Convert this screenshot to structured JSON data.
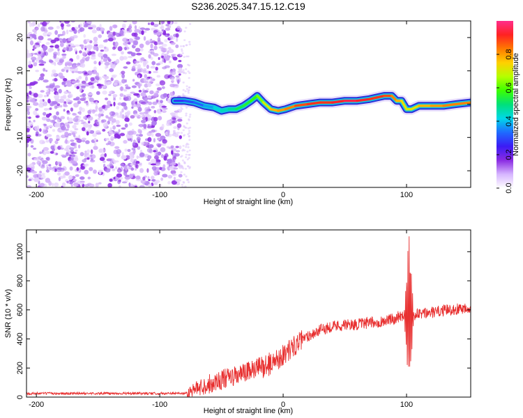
{
  "title": "S236.2025.347.15.12.C19",
  "chart_data": [
    {
      "type": "heatmap",
      "name": "spectrogram",
      "xlabel": "Height of straight line (km)",
      "ylabel": "Frequency (Hz)",
      "xlim": [
        -208,
        152
      ],
      "ylim": [
        -25,
        25
      ],
      "x_ticks": [
        -200,
        -100,
        0,
        100
      ],
      "x_tick_labels": [
        "-200",
        "-100",
        "0",
        "100"
      ],
      "y_ticks": [
        20,
        10,
        0,
        -10,
        -20
      ],
      "y_tick_labels": [
        "20",
        "10",
        "0",
        "-10",
        "-20"
      ],
      "noise_region_x": [
        -208,
        -83
      ],
      "ridge": {
        "x": [
          -88,
          -80,
          -72,
          -64,
          -56,
          -50,
          -44,
          -38,
          -32,
          -26,
          -21,
          -16,
          -10,
          -4,
          2,
          10,
          20,
          30,
          40,
          50,
          60,
          70,
          76,
          82,
          88,
          92,
          96,
          100,
          104,
          110,
          120,
          130,
          140,
          152
        ],
        "freq": [
          1,
          1,
          0.5,
          -0.5,
          -1,
          -2,
          -1.5,
          -1.5,
          -0.5,
          1,
          2.5,
          0.5,
          -1.5,
          -2,
          -1.5,
          -0.5,
          0,
          0.5,
          0.5,
          1,
          1,
          1.5,
          2,
          2.5,
          2.5,
          1,
          1,
          -1.5,
          -1.5,
          -0.5,
          -0.5,
          -0.5,
          0,
          0.5
        ],
        "amplitude": [
          0.25,
          0.3,
          0.3,
          0.35,
          0.4,
          0.45,
          0.45,
          0.5,
          0.55,
          0.55,
          0.6,
          0.65,
          0.75,
          0.8,
          0.8,
          0.85,
          0.9,
          0.9,
          0.9,
          0.95,
          0.95,
          0.9,
          0.9,
          0.9,
          0.85,
          0.8,
          0.75,
          0.7,
          0.7,
          0.75,
          0.8,
          0.8,
          0.85,
          0.8
        ]
      }
    },
    {
      "type": "line",
      "name": "snr",
      "xlabel": "Height of straight line (km)",
      "ylabel": "SNR (10 * v/v)",
      "xlim": [
        -208,
        152
      ],
      "ylim": [
        0,
        1150
      ],
      "x_ticks": [
        -200,
        -100,
        0,
        100
      ],
      "x_tick_labels": [
        "-200",
        "-100",
        "0",
        "100"
      ],
      "y_ticks": [
        0,
        200,
        400,
        600,
        800,
        1000
      ],
      "y_tick_labels": [
        "0",
        "200",
        "400",
        "600",
        "800",
        "1000"
      ],
      "color": "#e83030",
      "trend": {
        "x": [
          -208,
          -80,
          -70,
          -60,
          -50,
          -40,
          -30,
          -20,
          -10,
          0,
          10,
          20,
          30,
          40,
          60,
          80,
          90,
          95,
          105,
          110,
          120,
          130,
          140,
          152
        ],
        "y": [
          25,
          25,
          60,
          90,
          120,
          140,
          170,
          200,
          230,
          290,
          360,
          420,
          460,
          490,
          500,
          520,
          540,
          560,
          560,
          570,
          580,
          595,
          605,
          620
        ]
      },
      "spike": {
        "x": [
          98,
          106
        ],
        "max": 1150,
        "min": 210
      }
    }
  ],
  "colorbar": {
    "label": "Normalized spectral amplitude",
    "range": [
      0,
      1
    ],
    "ticks": [
      0.0,
      0.2,
      0.4,
      0.6,
      0.8
    ],
    "tick_labels": [
      "0.0",
      "0.2",
      "0.4",
      "0.6",
      "0.8"
    ],
    "colors": [
      "#ffffff",
      "#d6b5ff",
      "#8a2be2",
      "#3b1cf5",
      "#1e6bff",
      "#00d8e8",
      "#00e07a",
      "#3cff00",
      "#b4ff00",
      "#ffd000",
      "#ff7a00",
      "#ff2222",
      "#ff2e8c"
    ]
  }
}
